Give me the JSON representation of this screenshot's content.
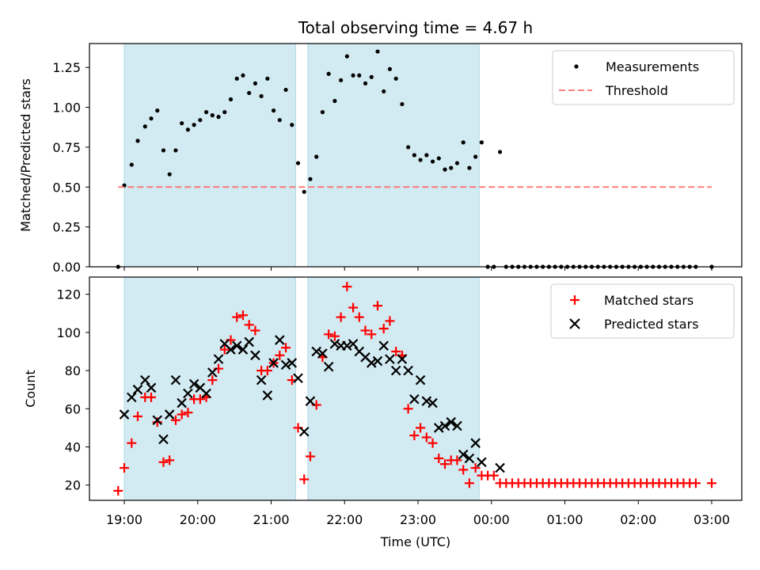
{
  "figure": {
    "title": "Total observing time = 4.67 h",
    "x_label": "Time (UTC)"
  },
  "chart_data": [
    {
      "type": "scatter",
      "ylabel": "Matched/Predicted stars",
      "ylim": [
        0,
        1.4
      ],
      "y_ticks": [
        "0.00",
        "0.25",
        "0.50",
        "0.75",
        "1.00",
        "1.25"
      ],
      "x_ticks": [],
      "x_tick_labels": [],
      "grid": false,
      "legend_position": "top-right",
      "shaded_intervals": [
        [
          "19:00",
          "21:20"
        ],
        [
          "21:30",
          "23:50"
        ]
      ],
      "shade_color": "#add8e6",
      "series": [
        {
          "name": "Measurements",
          "marker": "dot",
          "color": "#000000",
          "points": [
            [
              "18:55",
              0.0
            ],
            [
              "19:00",
              0.51
            ],
            [
              "19:06",
              0.64
            ],
            [
              "19:11",
              0.79
            ],
            [
              "19:17",
              0.88
            ],
            [
              "19:22",
              0.93
            ],
            [
              "19:27",
              0.98
            ],
            [
              "19:32",
              0.73
            ],
            [
              "19:37",
              0.58
            ],
            [
              "19:42",
              0.73
            ],
            [
              "19:47",
              0.9
            ],
            [
              "19:52",
              0.86
            ],
            [
              "19:57",
              0.89
            ],
            [
              "20:02",
              0.92
            ],
            [
              "20:07",
              0.97
            ],
            [
              "20:12",
              0.95
            ],
            [
              "20:17",
              0.94
            ],
            [
              "20:22",
              0.97
            ],
            [
              "20:27",
              1.05
            ],
            [
              "20:32",
              1.18
            ],
            [
              "20:37",
              1.2
            ],
            [
              "20:42",
              1.09
            ],
            [
              "20:47",
              1.15
            ],
            [
              "20:52",
              1.07
            ],
            [
              "20:57",
              1.18
            ],
            [
              "21:02",
              0.98
            ],
            [
              "21:07",
              0.92
            ],
            [
              "21:12",
              1.11
            ],
            [
              "21:17",
              0.89
            ],
            [
              "21:22",
              0.65
            ],
            [
              "21:27",
              0.47
            ],
            [
              "21:32",
              0.55
            ],
            [
              "21:37",
              0.69
            ],
            [
              "21:42",
              0.97
            ],
            [
              "21:47",
              1.21
            ],
            [
              "21:52",
              1.04
            ],
            [
              "21:57",
              1.17
            ],
            [
              "22:02",
              1.32
            ],
            [
              "22:07",
              1.2
            ],
            [
              "22:12",
              1.2
            ],
            [
              "22:17",
              1.15
            ],
            [
              "22:22",
              1.19
            ],
            [
              "22:27",
              1.35
            ],
            [
              "22:32",
              1.1
            ],
            [
              "22:37",
              1.24
            ],
            [
              "22:42",
              1.18
            ],
            [
              "22:47",
              1.02
            ],
            [
              "22:52",
              0.75
            ],
            [
              "22:57",
              0.7
            ],
            [
              "23:02",
              0.67
            ],
            [
              "23:07",
              0.7
            ],
            [
              "23:12",
              0.66
            ],
            [
              "23:17",
              0.68
            ],
            [
              "23:22",
              0.61
            ],
            [
              "23:27",
              0.62
            ],
            [
              "23:32",
              0.65
            ],
            [
              "23:37",
              0.78
            ],
            [
              "23:42",
              0.62
            ],
            [
              "23:47",
              0.69
            ],
            [
              "23:52",
              0.78
            ],
            [
              "23:57",
              0.0
            ],
            [
              "00:02",
              0.0
            ],
            [
              "00:07",
              0.72
            ],
            [
              "00:12",
              0.0
            ],
            [
              "00:17",
              0.0
            ],
            [
              "00:22",
              0.0
            ],
            [
              "00:27",
              0.0
            ],
            [
              "00:32",
              0.0
            ],
            [
              "00:37",
              0.0
            ],
            [
              "00:42",
              0.0
            ],
            [
              "00:47",
              0.0
            ],
            [
              "00:52",
              0.0
            ],
            [
              "00:57",
              0.0
            ],
            [
              "01:02",
              0.0
            ],
            [
              "01:07",
              0.0
            ],
            [
              "01:12",
              0.0
            ],
            [
              "01:17",
              0.0
            ],
            [
              "01:22",
              0.0
            ],
            [
              "01:27",
              0.0
            ],
            [
              "01:32",
              0.0
            ],
            [
              "01:37",
              0.0
            ],
            [
              "01:42",
              0.0
            ],
            [
              "01:47",
              0.0
            ],
            [
              "01:52",
              0.0
            ],
            [
              "01:57",
              0.0
            ],
            [
              "02:02",
              0.0
            ],
            [
              "02:07",
              0.0
            ],
            [
              "02:12",
              0.0
            ],
            [
              "02:17",
              0.0
            ],
            [
              "02:22",
              0.0
            ],
            [
              "02:27",
              0.0
            ],
            [
              "02:32",
              0.0
            ],
            [
              "02:37",
              0.0
            ],
            [
              "02:42",
              0.0
            ],
            [
              "02:47",
              0.0
            ],
            [
              "03:00",
              0.0
            ]
          ]
        },
        {
          "name": "Threshold",
          "style": "dashed-line",
          "color": "#ff6666",
          "points": [
            [
              "18:55",
              0.5
            ],
            [
              "03:00",
              0.5
            ]
          ]
        }
      ]
    },
    {
      "type": "scatter",
      "ylabel": "Count",
      "ylim": [
        12,
        129
      ],
      "y_ticks": [
        "20",
        "40",
        "60",
        "80",
        "100",
        "120"
      ],
      "x_ticks": [
        "19:00",
        "20:00",
        "21:00",
        "22:00",
        "23:00",
        "00:00",
        "01:00",
        "02:00",
        "03:00"
      ],
      "x_tick_labels": [
        "19:00",
        "20:00",
        "21:00",
        "22:00",
        "23:00",
        "00:00",
        "01:00",
        "02:00",
        "03:00"
      ],
      "grid": false,
      "legend_position": "top-right",
      "shaded_intervals": [
        [
          "19:00",
          "21:20"
        ],
        [
          "21:30",
          "23:50"
        ]
      ],
      "shade_color": "#add8e6",
      "series": [
        {
          "name": "Matched stars",
          "marker": "plus",
          "color": "#ff0000",
          "points": [
            [
              "18:55",
              17
            ],
            [
              "19:00",
              29
            ],
            [
              "19:06",
              42
            ],
            [
              "19:11",
              56
            ],
            [
              "19:17",
              66
            ],
            [
              "19:22",
              66
            ],
            [
              "19:27",
              53
            ],
            [
              "19:32",
              32
            ],
            [
              "19:37",
              33
            ],
            [
              "19:42",
              54
            ],
            [
              "19:47",
              57
            ],
            [
              "19:52",
              58
            ],
            [
              "19:57",
              65
            ],
            [
              "20:02",
              65
            ],
            [
              "20:07",
              66
            ],
            [
              "20:12",
              75
            ],
            [
              "20:17",
              81
            ],
            [
              "20:22",
              91
            ],
            [
              "20:27",
              96
            ],
            [
              "20:32",
              108
            ],
            [
              "20:37",
              109
            ],
            [
              "20:42",
              104
            ],
            [
              "20:47",
              101
            ],
            [
              "20:52",
              80
            ],
            [
              "20:57",
              80
            ],
            [
              "21:02",
              84
            ],
            [
              "21:07",
              88
            ],
            [
              "21:12",
              92
            ],
            [
              "21:17",
              75
            ],
            [
              "21:22",
              50
            ],
            [
              "21:27",
              23
            ],
            [
              "21:32",
              35
            ],
            [
              "21:37",
              62
            ],
            [
              "21:42",
              87
            ],
            [
              "21:47",
              99
            ],
            [
              "21:52",
              98
            ],
            [
              "21:57",
              108
            ],
            [
              "22:02",
              124
            ],
            [
              "22:07",
              113
            ],
            [
              "22:12",
              108
            ],
            [
              "22:17",
              101
            ],
            [
              "22:22",
              99
            ],
            [
              "22:27",
              114
            ],
            [
              "22:32",
              102
            ],
            [
              "22:37",
              106
            ],
            [
              "22:42",
              90
            ],
            [
              "22:47",
              88
            ],
            [
              "22:52",
              60
            ],
            [
              "22:57",
              46
            ],
            [
              "23:02",
              50
            ],
            [
              "23:07",
              45
            ],
            [
              "23:12",
              42
            ],
            [
              "23:17",
              34
            ],
            [
              "23:22",
              31
            ],
            [
              "23:27",
              33
            ],
            [
              "23:32",
              33
            ],
            [
              "23:37",
              28
            ],
            [
              "23:42",
              21
            ],
            [
              "23:47",
              29
            ],
            [
              "23:52",
              25
            ],
            [
              "23:57",
              25
            ],
            [
              "00:02",
              25
            ],
            [
              "00:07",
              21
            ],
            [
              "00:12",
              21
            ],
            [
              "00:17",
              21
            ],
            [
              "00:22",
              21
            ],
            [
              "00:27",
              21
            ],
            [
              "00:32",
              21
            ],
            [
              "00:37",
              21
            ],
            [
              "00:42",
              21
            ],
            [
              "00:47",
              21
            ],
            [
              "00:52",
              21
            ],
            [
              "00:57",
              21
            ],
            [
              "01:02",
              21
            ],
            [
              "01:07",
              21
            ],
            [
              "01:12",
              21
            ],
            [
              "01:17",
              21
            ],
            [
              "01:22",
              21
            ],
            [
              "01:27",
              21
            ],
            [
              "01:32",
              21
            ],
            [
              "01:37",
              21
            ],
            [
              "01:42",
              21
            ],
            [
              "01:47",
              21
            ],
            [
              "01:52",
              21
            ],
            [
              "01:57",
              21
            ],
            [
              "02:02",
              21
            ],
            [
              "02:07",
              21
            ],
            [
              "02:12",
              21
            ],
            [
              "02:17",
              21
            ],
            [
              "02:22",
              21
            ],
            [
              "02:27",
              21
            ],
            [
              "02:32",
              21
            ],
            [
              "02:37",
              21
            ],
            [
              "02:42",
              21
            ],
            [
              "02:47",
              21
            ],
            [
              "03:00",
              21
            ]
          ]
        },
        {
          "name": "Predicted stars",
          "marker": "x",
          "color": "#000000",
          "points": [
            [
              "19:00",
              57
            ],
            [
              "19:06",
              66
            ],
            [
              "19:11",
              70
            ],
            [
              "19:17",
              75
            ],
            [
              "19:22",
              71
            ],
            [
              "19:27",
              54
            ],
            [
              "19:32",
              44
            ],
            [
              "19:37",
              57
            ],
            [
              "19:42",
              75
            ],
            [
              "19:47",
              63
            ],
            [
              "19:52",
              68
            ],
            [
              "19:57",
              73
            ],
            [
              "20:02",
              71
            ],
            [
              "20:07",
              68
            ],
            [
              "20:12",
              79
            ],
            [
              "20:17",
              86
            ],
            [
              "20:22",
              94
            ],
            [
              "20:27",
              91
            ],
            [
              "20:32",
              93
            ],
            [
              "20:37",
              91
            ],
            [
              "20:42",
              95
            ],
            [
              "20:47",
              88
            ],
            [
              "20:52",
              75
            ],
            [
              "20:57",
              67
            ],
            [
              "21:02",
              84
            ],
            [
              "21:07",
              96
            ],
            [
              "21:12",
              83
            ],
            [
              "21:17",
              84
            ],
            [
              "21:22",
              76
            ],
            [
              "21:27",
              48
            ],
            [
              "21:32",
              64
            ],
            [
              "21:37",
              90
            ],
            [
              "21:42",
              89
            ],
            [
              "21:47",
              82
            ],
            [
              "21:52",
              94
            ],
            [
              "21:57",
              93
            ],
            [
              "22:02",
              93
            ],
            [
              "22:07",
              94
            ],
            [
              "22:12",
              90
            ],
            [
              "22:17",
              87
            ],
            [
              "22:22",
              84
            ],
            [
              "22:27",
              85
            ],
            [
              "22:32",
              93
            ],
            [
              "22:37",
              86
            ],
            [
              "22:42",
              80
            ],
            [
              "22:47",
              86
            ],
            [
              "22:52",
              80
            ],
            [
              "22:57",
              65
            ],
            [
              "23:02",
              75
            ],
            [
              "23:07",
              64
            ],
            [
              "23:12",
              63
            ],
            [
              "23:17",
              50
            ],
            [
              "23:22",
              51
            ],
            [
              "23:27",
              53
            ],
            [
              "23:32",
              51
            ],
            [
              "23:37",
              36
            ],
            [
              "23:42",
              34
            ],
            [
              "23:47",
              42
            ],
            [
              "23:52",
              32
            ],
            [
              "00:07",
              29
            ]
          ]
        }
      ]
    }
  ]
}
